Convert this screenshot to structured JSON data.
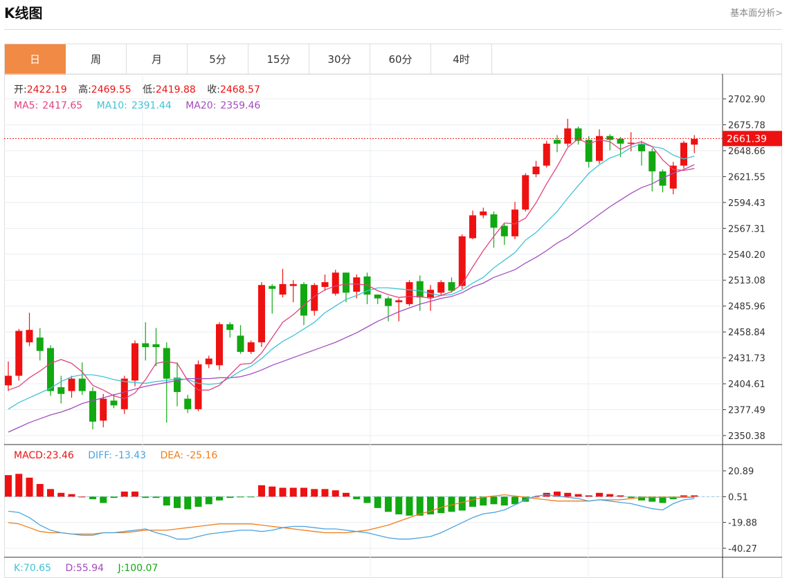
{
  "header": {
    "title": "K线图",
    "fundamental_link": "基本面分析>"
  },
  "tabs": [
    {
      "label": "日",
      "active": true
    },
    {
      "label": "周",
      "active": false
    },
    {
      "label": "月",
      "active": false
    },
    {
      "label": "5分",
      "active": false
    },
    {
      "label": "15分",
      "active": false
    },
    {
      "label": "30分",
      "active": false
    },
    {
      "label": "60分",
      "active": false
    },
    {
      "label": "4时",
      "active": false
    }
  ],
  "info": {
    "open_label": "开:",
    "open": "2422.19",
    "high_label": "高:",
    "high": "2469.55",
    "low_label": "低:",
    "low": "2419.88",
    "close_label": "收:",
    "close": "2468.57",
    "ma5_label": "MA5:",
    "ma5": "2417.65",
    "ma10_label": "MA10:",
    "ma10": "2391.44",
    "ma20_label": "MA20:",
    "ma20": "2359.46"
  },
  "macd_info": {
    "macd_label": "MACD:",
    "macd": "23.46",
    "diff_label": "DIFF:",
    "diff": "-13.43",
    "dea_label": "DEA:",
    "dea": "-25.16"
  },
  "kdj_info": {
    "k_label": "K:",
    "k": "70.65",
    "d_label": "D:",
    "d": "55.94",
    "j_label": "J:",
    "j": "100.07"
  },
  "colors": {
    "up": "#ee1111",
    "down": "#11a811",
    "ma5": "#e0427e",
    "ma10": "#3fc2d6",
    "ma20": "#a34bbf",
    "diff": "#4aa3df",
    "dea": "#f07b16",
    "grid": "#e8eef2",
    "price_tag": "#ee1111"
  },
  "chart_data": {
    "type": "candlestick",
    "price_axis": {
      "ticks": [
        "2702.90",
        "2675.78",
        "2648.66",
        "2621.55",
        "2594.43",
        "2567.31",
        "2540.20",
        "2513.08",
        "2485.96",
        "2458.84",
        "2431.73",
        "2404.61",
        "2377.49",
        "2350.38"
      ],
      "range": [
        2350.38,
        2702.9
      ]
    },
    "last_price": "2661.39",
    "macd_axis": {
      "ticks": [
        "20.89",
        "0.51",
        "-19.88",
        "-40.27"
      ],
      "range": [
        -40.27,
        20.89
      ]
    },
    "candles": [
      {
        "o": 2403,
        "c": 2413,
        "h": 2428,
        "l": 2397
      },
      {
        "o": 2413,
        "c": 2460,
        "h": 2462,
        "l": 2408
      },
      {
        "o": 2448,
        "c": 2461,
        "h": 2479,
        "l": 2444
      },
      {
        "o": 2453,
        "c": 2439,
        "h": 2463,
        "l": 2429
      },
      {
        "o": 2442,
        "c": 2397,
        "h": 2445,
        "l": 2392
      },
      {
        "o": 2401,
        "c": 2394,
        "h": 2413,
        "l": 2384
      },
      {
        "o": 2397,
        "c": 2410,
        "h": 2413,
        "l": 2390
      },
      {
        "o": 2410,
        "c": 2397,
        "h": 2427,
        "l": 2393
      },
      {
        "o": 2397,
        "c": 2365,
        "h": 2401,
        "l": 2357
      },
      {
        "o": 2366,
        "c": 2389,
        "h": 2394,
        "l": 2359
      },
      {
        "o": 2387,
        "c": 2382,
        "h": 2394,
        "l": 2379
      },
      {
        "o": 2378,
        "c": 2410,
        "h": 2413,
        "l": 2373
      },
      {
        "o": 2408,
        "c": 2447,
        "h": 2450,
        "l": 2402
      },
      {
        "o": 2447,
        "c": 2443,
        "h": 2469,
        "l": 2429
      },
      {
        "o": 2446,
        "c": 2443,
        "h": 2463,
        "l": 2423
      },
      {
        "o": 2442,
        "c": 2410,
        "h": 2448,
        "l": 2364
      },
      {
        "o": 2411,
        "c": 2396,
        "h": 2427,
        "l": 2381
      },
      {
        "o": 2389,
        "c": 2378,
        "h": 2393,
        "l": 2374
      },
      {
        "o": 2378,
        "c": 2425,
        "h": 2429,
        "l": 2376
      },
      {
        "o": 2425,
        "c": 2431,
        "h": 2434,
        "l": 2421
      },
      {
        "o": 2424,
        "c": 2467,
        "h": 2469,
        "l": 2419
      },
      {
        "o": 2467,
        "c": 2461,
        "h": 2469,
        "l": 2453
      },
      {
        "o": 2455,
        "c": 2438,
        "h": 2466,
        "l": 2436
      },
      {
        "o": 2438,
        "c": 2448,
        "h": 2450,
        "l": 2436
      },
      {
        "o": 2448,
        "c": 2508,
        "h": 2511,
        "l": 2443
      },
      {
        "o": 2507,
        "c": 2504,
        "h": 2509,
        "l": 2478
      },
      {
        "o": 2498,
        "c": 2509,
        "h": 2525,
        "l": 2495
      },
      {
        "o": 2507,
        "c": 2509,
        "h": 2513,
        "l": 2490
      },
      {
        "o": 2509,
        "c": 2476,
        "h": 2511,
        "l": 2466
      },
      {
        "o": 2481,
        "c": 2508,
        "h": 2510,
        "l": 2476
      },
      {
        "o": 2506,
        "c": 2511,
        "h": 2519,
        "l": 2502
      },
      {
        "o": 2499,
        "c": 2521,
        "h": 2524,
        "l": 2497
      },
      {
        "o": 2521,
        "c": 2500,
        "h": 2521,
        "l": 2490
      },
      {
        "o": 2501,
        "c": 2516,
        "h": 2519,
        "l": 2494
      },
      {
        "o": 2517,
        "c": 2498,
        "h": 2521,
        "l": 2488
      },
      {
        "o": 2498,
        "c": 2494,
        "h": 2498,
        "l": 2488
      },
      {
        "o": 2494,
        "c": 2486,
        "h": 2496,
        "l": 2470
      },
      {
        "o": 2490,
        "c": 2492,
        "h": 2494,
        "l": 2470
      },
      {
        "o": 2488,
        "c": 2511,
        "h": 2513,
        "l": 2486
      },
      {
        "o": 2512,
        "c": 2495,
        "h": 2518,
        "l": 2481
      },
      {
        "o": 2495,
        "c": 2503,
        "h": 2508,
        "l": 2481
      },
      {
        "o": 2500,
        "c": 2511,
        "h": 2513,
        "l": 2497
      },
      {
        "o": 2511,
        "c": 2502,
        "h": 2516,
        "l": 2500
      },
      {
        "o": 2507,
        "c": 2559,
        "h": 2561,
        "l": 2504
      },
      {
        "o": 2557,
        "c": 2581,
        "h": 2586,
        "l": 2556
      },
      {
        "o": 2581,
        "c": 2585,
        "h": 2589,
        "l": 2578
      },
      {
        "o": 2582,
        "c": 2568,
        "h": 2585,
        "l": 2547
      },
      {
        "o": 2570,
        "c": 2559,
        "h": 2572,
        "l": 2550
      },
      {
        "o": 2559,
        "c": 2587,
        "h": 2595,
        "l": 2556
      },
      {
        "o": 2587,
        "c": 2623,
        "h": 2625,
        "l": 2585
      },
      {
        "o": 2624,
        "c": 2632,
        "h": 2638,
        "l": 2621
      },
      {
        "o": 2633,
        "c": 2656,
        "h": 2659,
        "l": 2631
      },
      {
        "o": 2660,
        "c": 2656,
        "h": 2665,
        "l": 2647
      },
      {
        "o": 2656,
        "c": 2672,
        "h": 2682,
        "l": 2653
      },
      {
        "o": 2672,
        "c": 2659,
        "h": 2674,
        "l": 2655
      },
      {
        "o": 2660,
        "c": 2637,
        "h": 2664,
        "l": 2631
      },
      {
        "o": 2638,
        "c": 2664,
        "h": 2671,
        "l": 2635
      },
      {
        "o": 2664,
        "c": 2660,
        "h": 2666,
        "l": 2649
      },
      {
        "o": 2661,
        "c": 2656,
        "h": 2663,
        "l": 2642
      },
      {
        "o": 2656,
        "c": 2657,
        "h": 2668,
        "l": 2648
      },
      {
        "o": 2656,
        "c": 2648,
        "h": 2659,
        "l": 2633
      },
      {
        "o": 2648,
        "c": 2627,
        "h": 2651,
        "l": 2606
      },
      {
        "o": 2627,
        "c": 2612,
        "h": 2629,
        "l": 2605
      },
      {
        "o": 2609,
        "c": 2633,
        "h": 2637,
        "l": 2603
      },
      {
        "o": 2633,
        "c": 2657,
        "h": 2659,
        "l": 2630
      },
      {
        "o": 2655,
        "c": 2661,
        "h": 2665,
        "l": 2646
      }
    ],
    "ma5": [
      2398,
      2402,
      2411,
      2418,
      2426,
      2430,
      2426,
      2417,
      2403,
      2398,
      2392,
      2389,
      2395,
      2409,
      2426,
      2428,
      2426,
      2408,
      2398,
      2398,
      2403,
      2414,
      2425,
      2426,
      2437,
      2453,
      2469,
      2477,
      2487,
      2496,
      2503,
      2507,
      2509,
      2509,
      2508,
      2502,
      2498,
      2495,
      2496,
      2496,
      2494,
      2497,
      2501,
      2509,
      2527,
      2544,
      2559,
      2573,
      2572,
      2578,
      2594,
      2614,
      2632,
      2652,
      2661,
      2656,
      2660,
      2658,
      2650,
      2655,
      2658,
      2653,
      2639,
      2629,
      2628,
      2630
    ],
    "ma10": [
      2378,
      2385,
      2390,
      2395,
      2400,
      2407,
      2412,
      2414,
      2414,
      2412,
      2409,
      2407,
      2406,
      2405,
      2407,
      2408,
      2410,
      2409,
      2405,
      2404,
      2405,
      2411,
      2418,
      2423,
      2431,
      2441,
      2449,
      2455,
      2462,
      2469,
      2479,
      2486,
      2493,
      2497,
      2502,
      2505,
      2505,
      2504,
      2503,
      2502,
      2499,
      2497,
      2498,
      2503,
      2510,
      2516,
      2526,
      2534,
      2542,
      2555,
      2563,
      2574,
      2585,
      2599,
      2612,
      2625,
      2634,
      2641,
      2645,
      2652,
      2656,
      2653,
      2651,
      2644,
      2640,
      2643
    ],
    "ma20": [
      2354,
      2359,
      2364,
      2368,
      2372,
      2375,
      2379,
      2384,
      2387,
      2390,
      2393,
      2396,
      2399,
      2402,
      2404,
      2406,
      2408,
      2410,
      2410,
      2410,
      2411,
      2411,
      2412,
      2415,
      2419,
      2424,
      2428,
      2432,
      2436,
      2440,
      2444,
      2448,
      2453,
      2458,
      2464,
      2470,
      2475,
      2480,
      2484,
      2488,
      2491,
      2494,
      2496,
      2500,
      2506,
      2510,
      2516,
      2520,
      2524,
      2531,
      2537,
      2544,
      2552,
      2558,
      2566,
      2574,
      2582,
      2590,
      2597,
      2604,
      2610,
      2614,
      2620,
      2625,
      2629,
      2634
    ],
    "macd_hist": [
      17,
      18,
      15,
      10,
      6,
      3,
      2,
      0,
      -2,
      -5,
      -1,
      4,
      4,
      -1,
      -1,
      -7,
      -9,
      -10,
      -8,
      -6,
      -3,
      -1,
      -0.5,
      -0.5,
      9,
      8,
      7,
      7,
      7,
      6,
      6,
      5,
      3,
      -2,
      -5,
      -9,
      -12,
      -14,
      -15,
      -15,
      -14,
      -13,
      -12,
      -11,
      -8,
      -7,
      -6,
      -7,
      -6,
      -4,
      0,
      3,
      4,
      3,
      2,
      1,
      3,
      2,
      1,
      -1,
      -3,
      -4,
      -5,
      -2,
      1,
      1
    ],
    "diff": [
      -11,
      -12,
      -16,
      -22,
      -26,
      -28,
      -29,
      -30,
      -30,
      -28,
      -28,
      -27,
      -26,
      -25,
      -28,
      -30,
      -33,
      -33,
      -31,
      -29,
      -28,
      -27,
      -26,
      -26,
      -27,
      -26,
      -24,
      -23,
      -23,
      -24,
      -25,
      -25,
      -26,
      -27,
      -28,
      -30,
      -32,
      -33,
      -33,
      -32,
      -31,
      -28,
      -24,
      -20,
      -16,
      -13,
      -12,
      -10,
      -6,
      -2,
      1,
      2,
      1,
      0,
      -1,
      -3,
      -2,
      -3,
      -4,
      -5,
      -7,
      -9,
      -10,
      -5,
      -2,
      -1
    ],
    "dea": [
      -20,
      -21,
      -24,
      -27,
      -28,
      -28,
      -29,
      -29,
      -29,
      -28,
      -28,
      -28,
      -27,
      -26,
      -26,
      -26,
      -25,
      -24,
      -23,
      -22,
      -21,
      -21,
      -21,
      -21,
      -22,
      -23,
      -24,
      -25,
      -26,
      -27,
      -28,
      -28,
      -28,
      -27,
      -26,
      -24,
      -22,
      -19,
      -16,
      -13,
      -11,
      -8,
      -6,
      -4,
      -2,
      0,
      1,
      2,
      1,
      0,
      -1,
      -2,
      -3,
      -3,
      -3,
      -3,
      -2,
      -2,
      -2,
      -1,
      0,
      0,
      0,
      0,
      0,
      0
    ]
  }
}
